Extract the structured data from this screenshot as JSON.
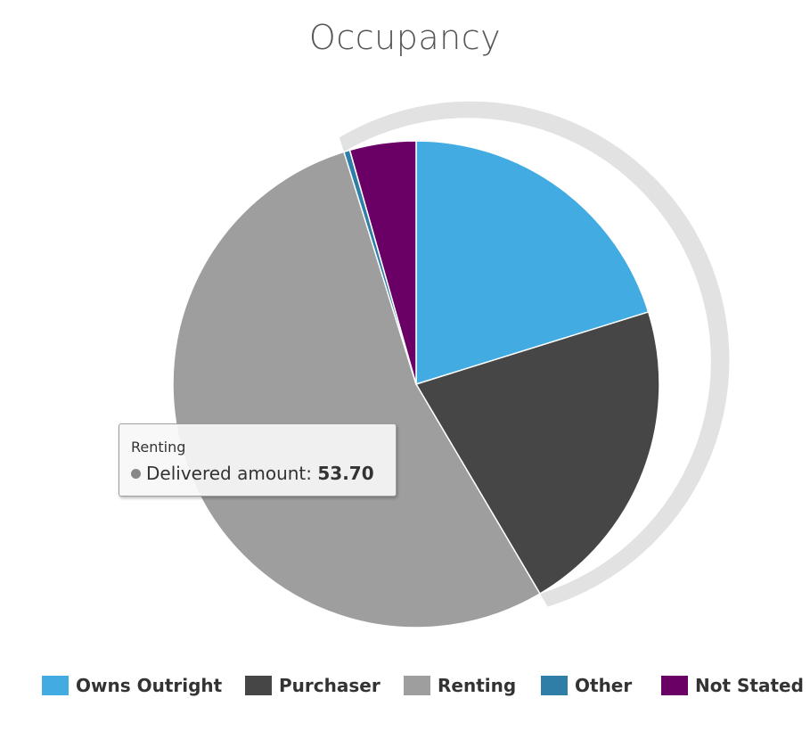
{
  "chart_data": {
    "type": "pie",
    "title": "Occupancy",
    "series_name": "Delivered amount",
    "categories": [
      "Owns Outright",
      "Purchaser",
      "Renting",
      "Other",
      "Not Stated"
    ],
    "values": [
      20.2,
      21.3,
      53.7,
      0.4,
      4.4
    ],
    "colors": [
      "#42ABE2",
      "#464646",
      "#9E9E9E",
      "#2E7EA8",
      "#6A0066"
    ],
    "hovered_index": 2,
    "legend_position": "bottom"
  },
  "tooltip": {
    "title": "Renting",
    "series_label": "Delivered amount: ",
    "value": "53.70",
    "dot_color": "#888888"
  }
}
